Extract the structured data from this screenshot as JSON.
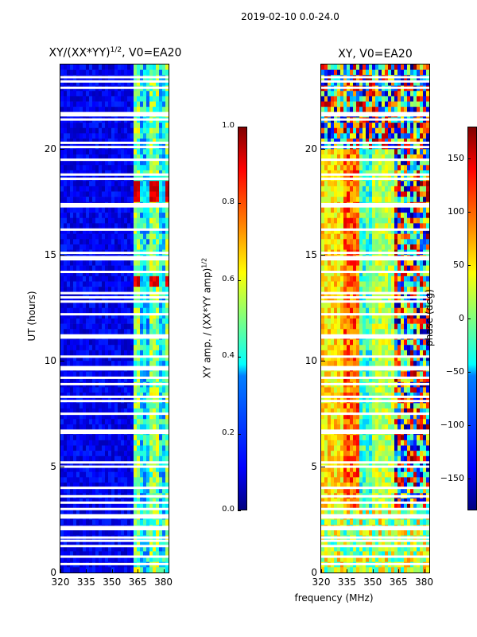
{
  "suptitle": "2019-02-10 0.0-24.0",
  "chart_data": [
    {
      "type": "heatmap",
      "title_base": "XY/(XX*YY)",
      "title_exp": "1/2",
      "title_suffix": ", V0=EA20",
      "xlabel": "",
      "ylabel": "UT (hours)",
      "xlim": [
        320,
        383
      ],
      "ylim": [
        0,
        24
      ],
      "xticks": [
        "320",
        "335",
        "350",
        "365",
        "380"
      ],
      "xtick_values": [
        320,
        335,
        350,
        365,
        380
      ],
      "yticks": [
        "0",
        "5",
        "10",
        "15",
        "20"
      ],
      "ytick_values": [
        0,
        5,
        10,
        15,
        20
      ],
      "colorbar": {
        "label_base": "XY amp. / (XX*YY amp)",
        "label_exp": "1/2",
        "range": [
          0.0,
          1.0
        ],
        "ticks": [
          "0.0",
          "0.2",
          "0.4",
          "0.6",
          "0.8",
          "1.0"
        ],
        "tick_values": [
          0.0,
          0.2,
          0.4,
          0.6,
          0.8,
          1.0
        ]
      }
    },
    {
      "type": "heatmap",
      "title": "XY, V0=EA20",
      "xlabel": "frequency (MHz)",
      "ylabel": "",
      "xlim": [
        320,
        383
      ],
      "ylim": [
        0,
        24
      ],
      "xticks": [
        "320",
        "335",
        "350",
        "365",
        "380"
      ],
      "xtick_values": [
        320,
        335,
        350,
        365,
        380
      ],
      "yticks": [
        "0",
        "5",
        "10",
        "15",
        "20"
      ],
      "ytick_values": [
        0,
        5,
        10,
        15,
        20
      ],
      "colorbar": {
        "label": "phase (deg)",
        "range": [
          -180,
          180
        ],
        "ticks": [
          "−150",
          "−100",
          "−50",
          "0",
          "50",
          "100",
          "150"
        ],
        "tick_values": [
          -150,
          -100,
          -50,
          0,
          50,
          100,
          150
        ]
      }
    }
  ],
  "gaps_hours": [
    0.4,
    0.75,
    1.25,
    1.5,
    1.65,
    2.05,
    2.15,
    2.6,
    2.7,
    3.0,
    3.3,
    3.6,
    4.0,
    5.0,
    5.2,
    6.6,
    6.7,
    7.5,
    8.1,
    8.3,
    8.9,
    9.2,
    9.6,
    9.7,
    10.2,
    11.1,
    11.2,
    12.2,
    12.8,
    13.0,
    13.2,
    14.2,
    14.8,
    14.9,
    15.1,
    16.2,
    17.3,
    17.4,
    18.6,
    18.8,
    19.5,
    20.1,
    20.3,
    21.4,
    21.6,
    21.7,
    22.9,
    23.2,
    23.4
  ]
}
